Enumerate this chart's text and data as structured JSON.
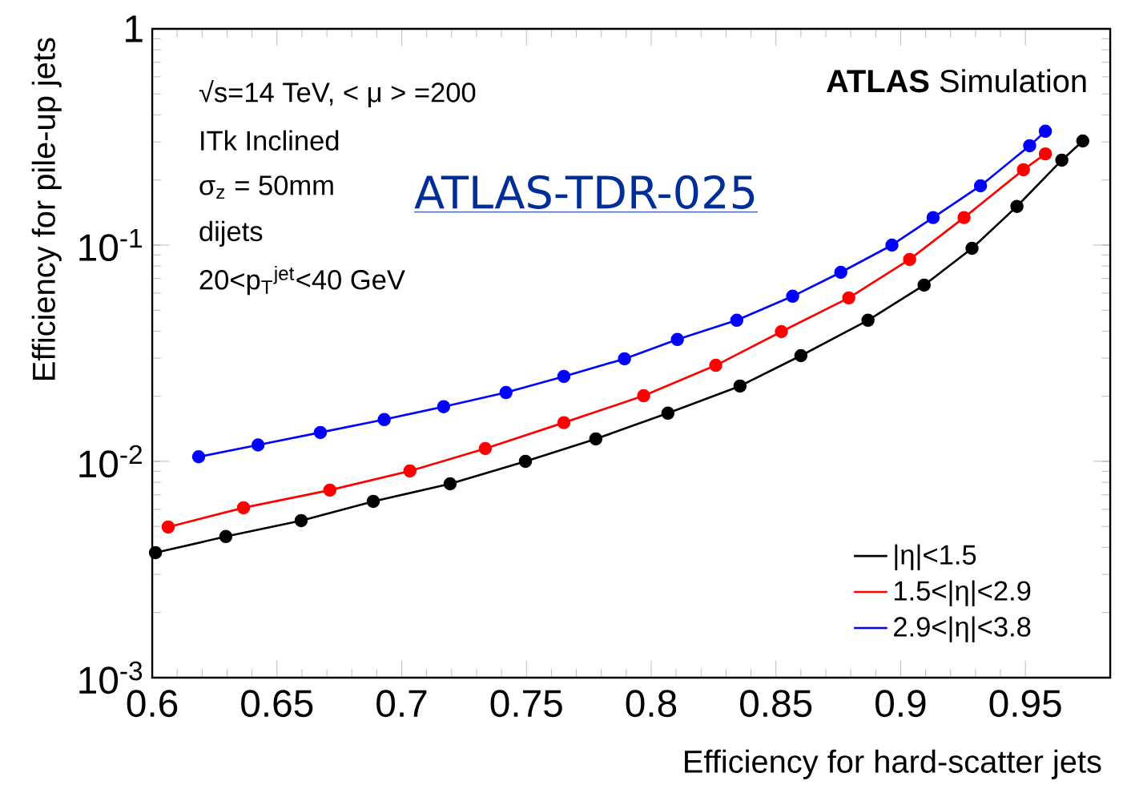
{
  "chart_data": {
    "type": "line",
    "xlabel": "Efficiency for hard-scatter jets",
    "ylabel": "Efficiency for  pile-up jets",
    "annotations": [
      "√s=14 TeV, < μ > =200",
      "ITk Inclined",
      "σ$_{z}$ = 50mm",
      "dijets",
      "20<p$_{T}$$^{jet}$<40 GeV",
      "**ATLAS** Simulation",
      "ATLAS-TDR-025"
    ],
    "log": "y",
    "xlim": [
      0.6,
      0.984
    ],
    "ylim": [
      0.001,
      1
    ],
    "xticks": [
      0.6,
      0.65,
      0.7,
      0.75,
      0.8,
      0.85,
      0.9,
      0.95
    ],
    "yticks": [
      {
        "value": 0.001,
        "label": "10$^{-3}$"
      },
      {
        "value": 0.01,
        "label": "10$^{-2}$"
      },
      {
        "value": 0.1,
        "label": "10$^{-1}$"
      },
      1
    ],
    "grid": false,
    "legend": "bottom right",
    "marker": "circle",
    "line_style": "solid",
    "series": [
      {
        "name": "|η|<1.5",
        "color": "#000000",
        "x": [
          0.6013,
          0.6295,
          0.6597,
          0.6886,
          0.7194,
          0.7496,
          0.7778,
          0.8067,
          0.8356,
          0.86,
          0.8869,
          0.9094,
          0.9286,
          0.9466,
          0.9646,
          0.973
        ],
        "values": [
          0.00378,
          0.00449,
          0.00532,
          0.00653,
          0.00787,
          0.01,
          0.0127,
          0.0167,
          0.0223,
          0.0308,
          0.0449,
          0.0653,
          0.0966,
          0.151,
          0.247,
          0.303
        ]
      },
      {
        "name": "1.5<|η|<2.9",
        "color": "#ff0000",
        "x": [
          0.6064,
          0.6366,
          0.6712,
          0.7033,
          0.7335,
          0.765,
          0.797,
          0.8259,
          0.8522,
          0.8792,
          0.9036,
          0.9254,
          0.9492,
          0.958
        ],
        "values": [
          0.00497,
          0.0061,
          0.00736,
          0.00903,
          0.01146,
          0.0151,
          0.0201,
          0.0278,
          0.0398,
          0.057,
          0.0858,
          0.134,
          0.223,
          0.264
        ]
      },
      {
        "name": "2.9<|η|<3.8",
        "color": "#0000ff",
        "x": [
          0.6186,
          0.6424,
          0.6674,
          0.693,
          0.7168,
          0.7418,
          0.765,
          0.7893,
          0.8105,
          0.8343,
          0.8567,
          0.876,
          0.8965,
          0.913,
          0.932,
          0.9517,
          0.958
        ],
        "values": [
          0.0105,
          0.0119,
          0.0136,
          0.0156,
          0.0179,
          0.0208,
          0.0247,
          0.0298,
          0.0366,
          0.0449,
          0.058,
          0.0748,
          0.1,
          0.134,
          0.188,
          0.288,
          0.336
        ]
      }
    ]
  }
}
